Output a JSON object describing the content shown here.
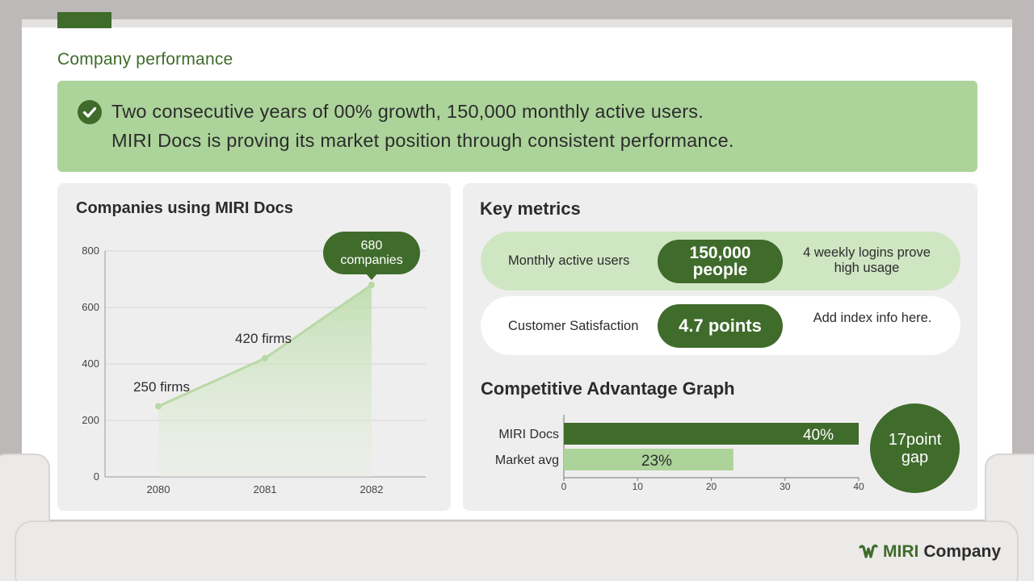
{
  "section_title": "Company performance",
  "banner": {
    "line1": "Two consecutive years of 00% growth, 150,000 monthly active users.",
    "line2": "MIRI Docs is proving its market position through consistent performance."
  },
  "companies_card": {
    "title": "Companies using MIRI Docs"
  },
  "metrics": {
    "title": "Key metrics",
    "rows": [
      {
        "label": "Monthly active users",
        "value_line1": "150,000",
        "value_line2": "people",
        "note": "4 weekly logins prove high usage"
      },
      {
        "label": "Customer Satisfaction",
        "value": "4.7 points",
        "note": "Add index info here."
      }
    ]
  },
  "competitive": {
    "title": "Competitive Advantage Graph",
    "gap_line1": "17point",
    "gap_line2": "gap"
  },
  "brand": {
    "name_a": "MIRI",
    "name_b": "Company"
  },
  "colors": {
    "dark_green": "#3f6b2b",
    "light_green": "#acd49a",
    "pale_green": "#cfe6c3",
    "card_bg": "#efeeee"
  },
  "chart_data": [
    {
      "type": "line",
      "title": "Companies using MIRI Docs",
      "x": [
        "2080",
        "2081",
        "2082"
      ],
      "values": [
        250,
        420,
        680
      ],
      "point_labels": [
        "250 firms",
        "420 firms",
        "680 companies"
      ],
      "callout_line1": "680",
      "callout_line2": "companies",
      "y_ticks": [
        "0",
        "200",
        "400",
        "600",
        "800"
      ],
      "ylim": [
        0,
        800
      ],
      "grid": true
    },
    {
      "type": "bar",
      "orientation": "horizontal",
      "categories": [
        "MIRI Docs",
        "Market avg"
      ],
      "values": [
        40,
        23
      ],
      "value_labels": [
        "40%",
        "23%"
      ],
      "x_ticks": [
        "0",
        "10",
        "20",
        "30",
        "40"
      ],
      "xlim": [
        0,
        40
      ]
    }
  ]
}
